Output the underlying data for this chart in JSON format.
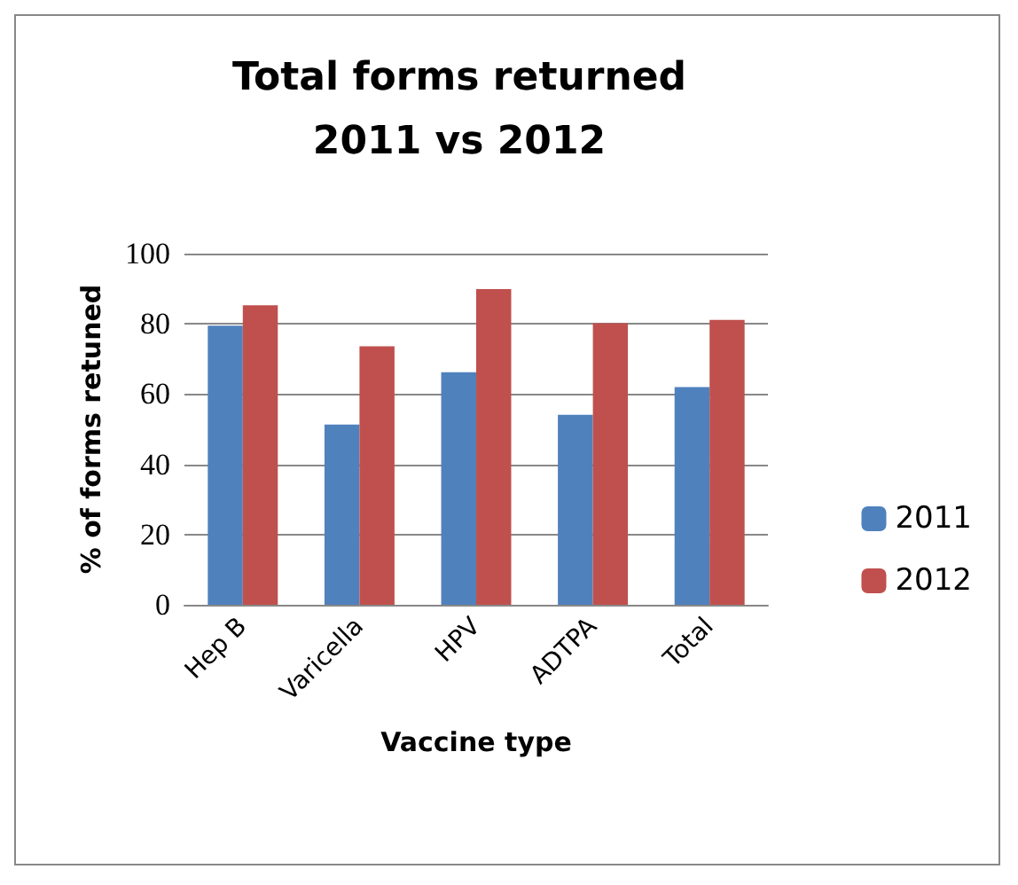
{
  "chart_data": {
    "type": "bar",
    "title": "Total forms returned\n2011 vs 2012",
    "xlabel": "Vaccine type",
    "ylabel": "% of forms retuned",
    "categories": [
      "Hep B",
      "Varicella",
      "HPV",
      "ADTPA",
      "Total"
    ],
    "series": [
      {
        "name": "2011",
        "color": "#4f81bd",
        "values": [
          79.5,
          51.3,
          66.2,
          54.1,
          62.0
        ]
      },
      {
        "name": "2012",
        "color": "#c0504d",
        "values": [
          85.3,
          73.6,
          89.9,
          80.2,
          81.1
        ]
      }
    ],
    "ylim": [
      0,
      100
    ],
    "yticks": [
      0,
      20,
      40,
      60,
      80,
      100
    ],
    "grid": "y",
    "legend": "right"
  }
}
